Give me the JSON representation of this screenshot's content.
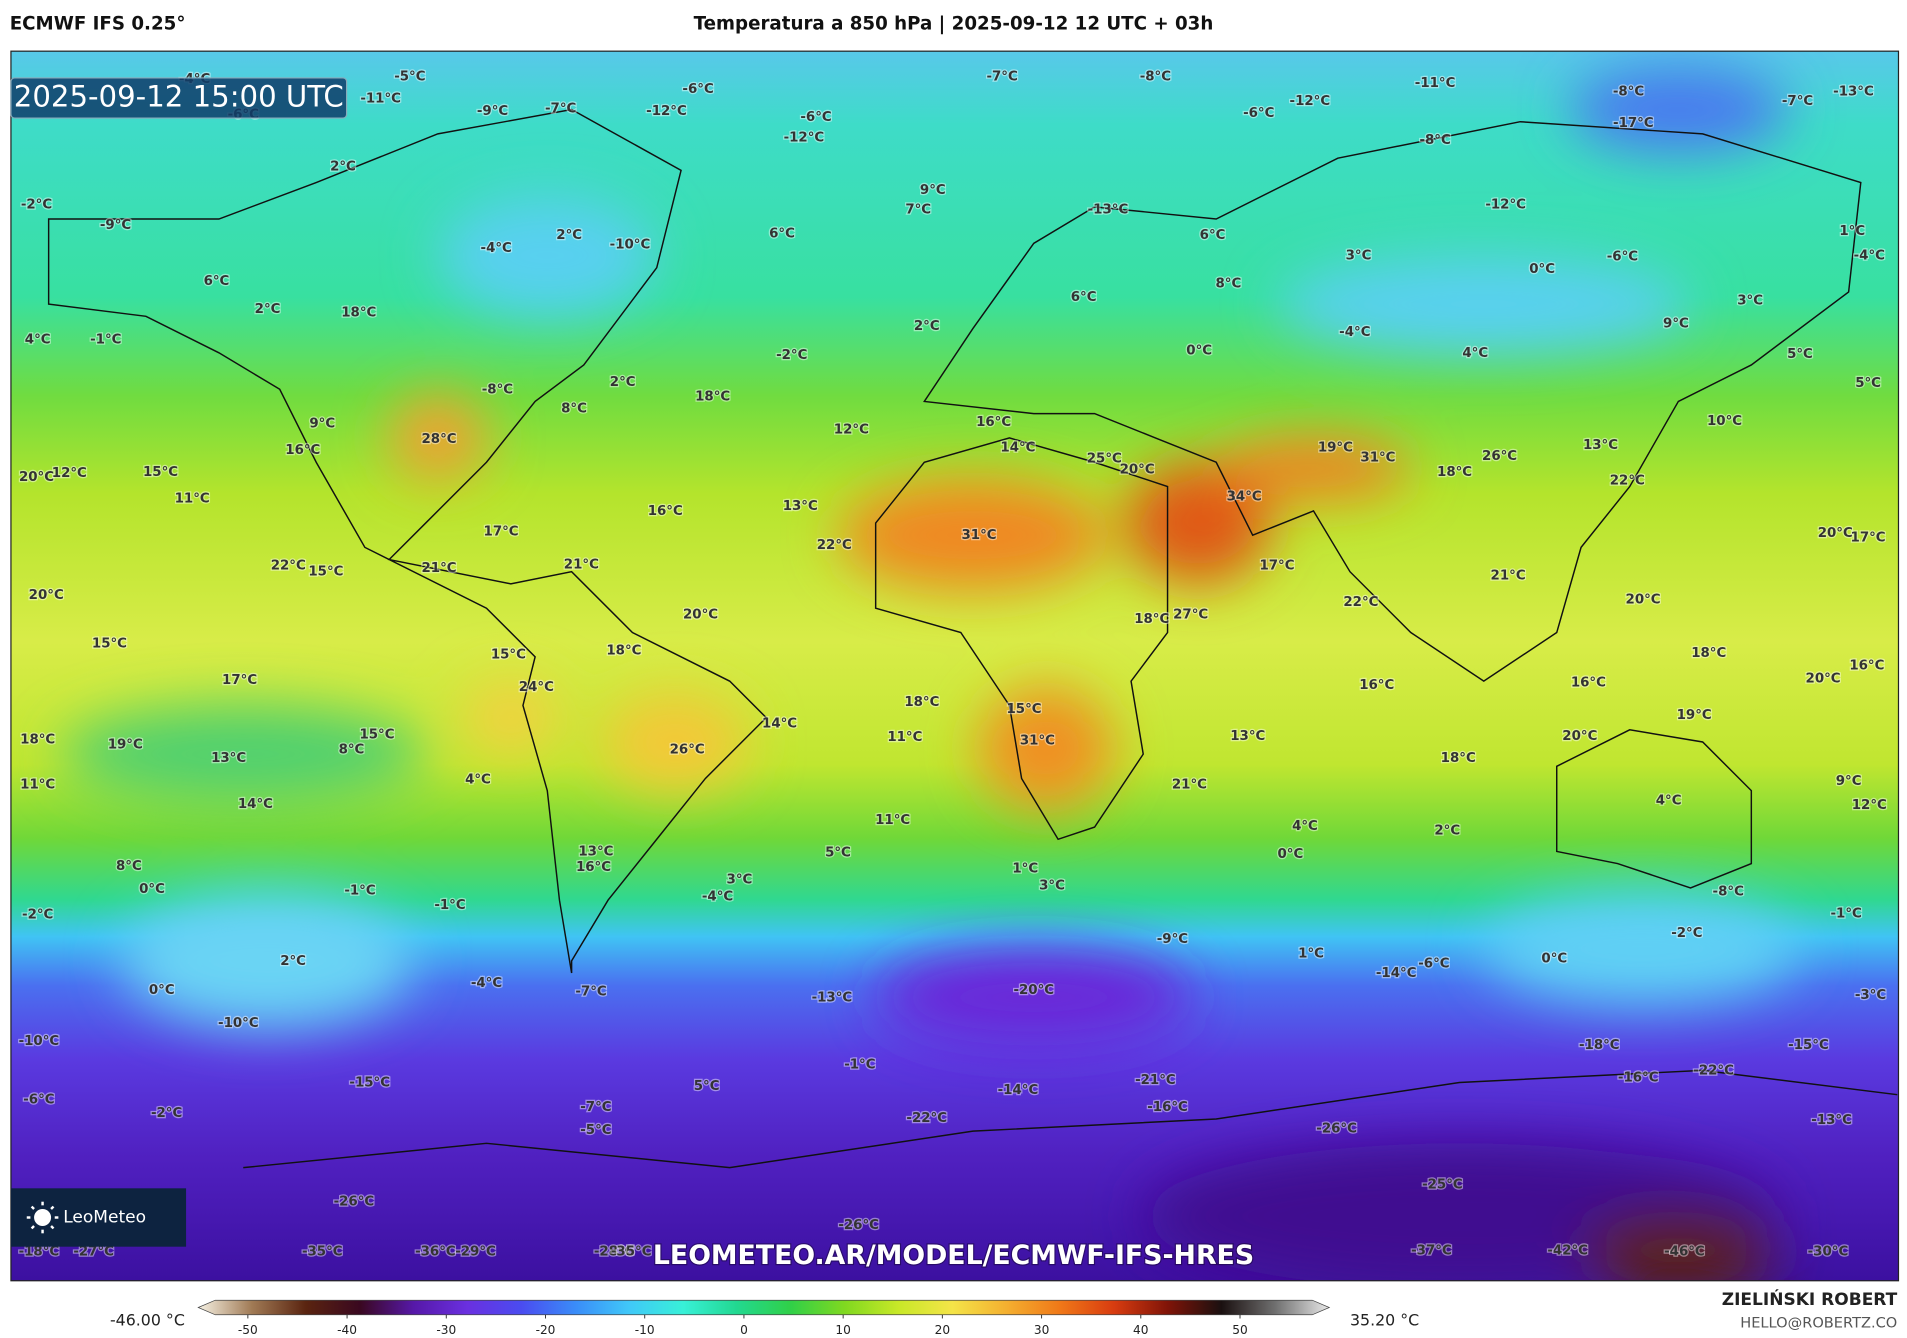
{
  "header": {
    "model": "ECMWF IFS 0.25°",
    "title": "Temperatura a 850 hPa | 2025-09-12 12 UTC + 03h"
  },
  "map": {
    "timestamp": "2025-09-12 15:00 UTC",
    "watermark": "LEOMETEO.AR/MODEL/ECMWF-IFS-HRES",
    "logo": "LeoMeteo",
    "labels": [
      "-5°C",
      "-4°C",
      "-11°C",
      "-6°C",
      "-9°C",
      "-7°C",
      "-12°C",
      "-6°C",
      "-7°C",
      "-8°C",
      "-11°C",
      "-8°C",
      "-13°C",
      "-7°C",
      "-12°C",
      "-6°C",
      "-17°C",
      "-8°C",
      "-6°C",
      "-12°C",
      "2°C",
      "-2°C",
      "-9°C",
      "9°C",
      "7°C",
      "-13°C",
      "6°C",
      "2°C",
      "-4°C",
      "-10°C",
      "6°C",
      "-12°C",
      "1°C",
      "3°C",
      "0°C",
      "-6°C",
      "-4°C",
      "6°C",
      "8°C",
      "6°C",
      "2°C",
      "18°C",
      "2°C",
      "3°C",
      "9°C",
      "4°C",
      "-1°C",
      "-4°C",
      "0°C",
      "-2°C",
      "4°C",
      "5°C",
      "-8°C",
      "2°C",
      "18°C",
      "5°C",
      "8°C",
      "9°C",
      "12°C",
      "16°C",
      "10°C",
      "28°C",
      "16°C",
      "14°C",
      "25°C",
      "20°C",
      "19°C",
      "31°C",
      "26°C",
      "13°C",
      "18°C",
      "20°C",
      "12°C",
      "15°C",
      "22°C",
      "11°C",
      "34°C",
      "16°C",
      "13°C",
      "31°C",
      "17°C",
      "20°C",
      "17°C",
      "22°C",
      "22°C",
      "15°C",
      "21°C",
      "21°C",
      "17°C",
      "21°C",
      "20°C",
      "22°C",
      "20°C",
      "20°C",
      "18°C",
      "27°C",
      "15°C",
      "15°C",
      "18°C",
      "18°C",
      "17°C",
      "16°C",
      "16°C",
      "20°C",
      "16°C",
      "24°C",
      "18°C",
      "15°C",
      "14°C",
      "19°C",
      "18°C",
      "19°C",
      "15°C",
      "8°C",
      "26°C",
      "11°C",
      "31°C",
      "13°C",
      "18°C",
      "20°C",
      "13°C",
      "11°C",
      "4°C",
      "21°C",
      "9°C",
      "14°C",
      "4°C",
      "12°C",
      "11°C",
      "4°C",
      "2°C",
      "13°C",
      "5°C",
      "16°C",
      "0°C",
      "8°C",
      "1°C",
      "0°C",
      "-1°C",
      "3°C",
      "-4°C",
      "3°C",
      "-8°C",
      "-1°C",
      "-2°C",
      "-1°C",
      "-9°C",
      "-2°C",
      "1°C",
      "0°C",
      "2°C",
      "-6°C",
      "-14°C",
      "-4°C",
      "0°C",
      "-7°C",
      "-20°C",
      "-13°C",
      "-3°C",
      "-10°C",
      "-10°C",
      "-18°C",
      "-15°C",
      "-1°C",
      "-22°C",
      "-16°C",
      "-21°C",
      "-15°C",
      "-14°C",
      "5°C",
      "-6°C",
      "-16°C",
      "-7°C",
      "-2°C",
      "-22°C",
      "-13°C",
      "-26°C",
      "-5°C",
      "-25°C",
      "-26°C",
      "-26°C",
      "-35°C",
      "-36°C",
      "-29°C",
      "-28°C",
      "-35°C",
      "-37°C",
      "-42°C",
      "-46°C",
      "-30°C",
      "-18°C",
      "-27°C"
    ]
  },
  "colorbar": {
    "min_label": "-46.00 °C",
    "max_label": "35.20 °C",
    "range": [
      -55,
      59
    ],
    "ticks": [
      -50,
      -40,
      -30,
      -20,
      -10,
      0,
      10,
      20,
      30,
      40,
      50
    ],
    "colors": [
      "#f6f1e3",
      "#a07a55",
      "#5a2410",
      "#3a0820",
      "#5618a8",
      "#6a30e0",
      "#4a4cf0",
      "#3a8cf8",
      "#40c8f8",
      "#38f0d8",
      "#22d890",
      "#30d048",
      "#80d820",
      "#c8e828",
      "#f4e448",
      "#f4b030",
      "#f07818",
      "#d83c10",
      "#801408",
      "#1a1010",
      "#707070",
      "#e8e8e8"
    ]
  },
  "footer": {
    "author": "ZIELIŃSKI ROBERT",
    "email": "HELLO@ROBERTZ.CO"
  }
}
